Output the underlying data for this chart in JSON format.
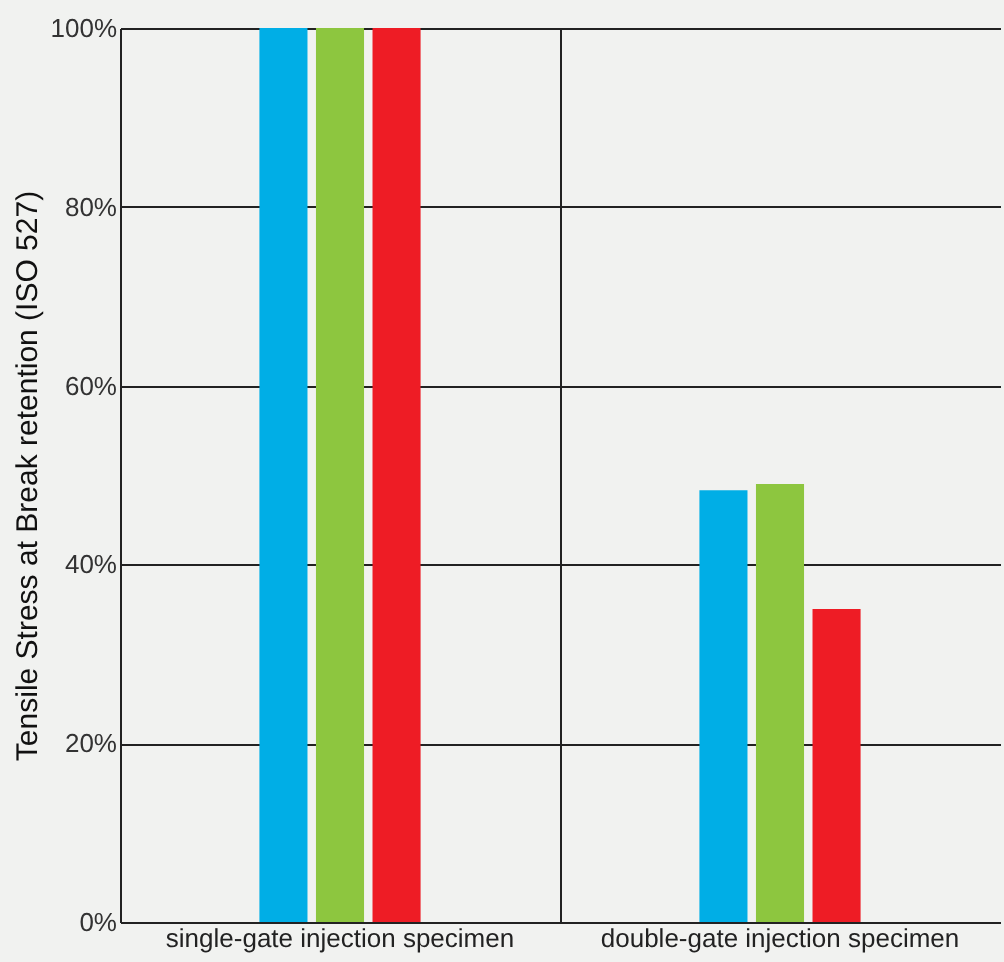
{
  "chart_data": {
    "type": "bar",
    "ylabel": "Tensile Stress at Break retention (ISO 527)",
    "categories": [
      "single-gate injection specimen",
      "double-gate injection specimen"
    ],
    "series": [
      {
        "color": "#00aee6",
        "values": [
          100,
          48.3
        ]
      },
      {
        "color": "#8dc63f",
        "values": [
          100,
          49
        ]
      },
      {
        "color": "#ee1c25",
        "values": [
          100,
          35
        ]
      }
    ],
    "ylim": [
      0,
      100
    ],
    "yticks": [
      {
        "value": 0,
        "label": "0%"
      },
      {
        "value": 20,
        "label": "20%"
      },
      {
        "value": 40,
        "label": "40%"
      },
      {
        "value": 60,
        "label": "60%"
      },
      {
        "value": 80,
        "label": "80%"
      },
      {
        "value": 100,
        "label": "100%"
      }
    ],
    "grid": true,
    "legend": false
  }
}
